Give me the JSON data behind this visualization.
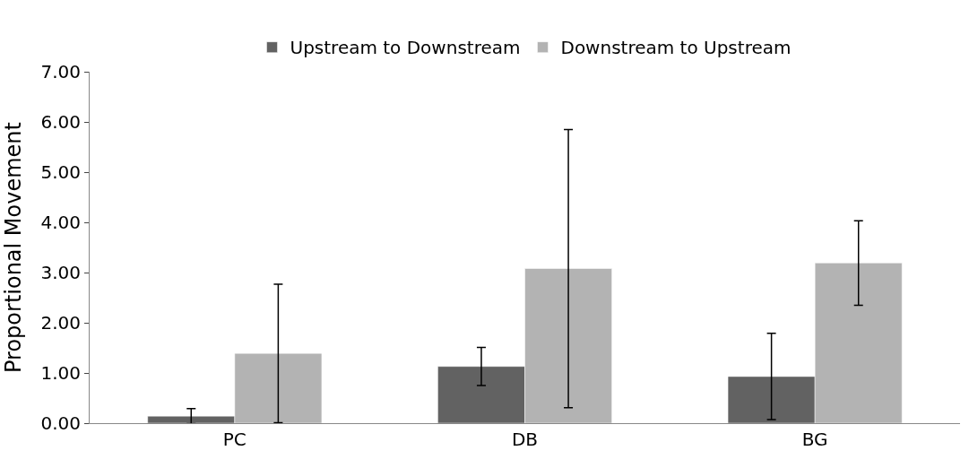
{
  "chart_data": {
    "type": "bar",
    "ylabel": "Proportional Movement",
    "categories": [
      "PC",
      "DB",
      "BG"
    ],
    "series": [
      {
        "name": "Upstream to Downstream",
        "color": "#626262",
        "values": [
          0.14,
          1.13,
          0.93
        ],
        "errors": [
          0.15,
          0.38,
          0.86
        ]
      },
      {
        "name": "Downstream to Upstream",
        "color": "#b3b3b3",
        "values": [
          1.39,
          3.08,
          3.19
        ],
        "errors": [
          1.38,
          2.77,
          0.84
        ]
      }
    ],
    "ylim": [
      0,
      7
    ],
    "yticks": [
      {
        "value": 0,
        "label": "0.00"
      },
      {
        "value": 1,
        "label": "1.00"
      },
      {
        "value": 2,
        "label": "2.00"
      },
      {
        "value": 3,
        "label": "3.00"
      },
      {
        "value": 4,
        "label": "4.00"
      },
      {
        "value": 5,
        "label": "5.00"
      },
      {
        "value": 6,
        "label": "6.00"
      },
      {
        "value": 7,
        "label": "7.00"
      }
    ],
    "grid": false,
    "legend": "top"
  }
}
